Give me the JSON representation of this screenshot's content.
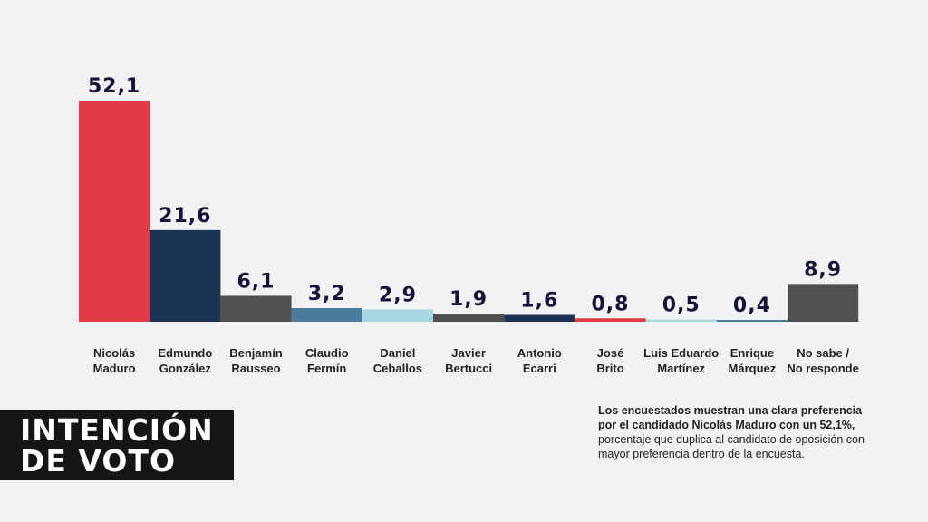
{
  "chart_data": {
    "type": "bar",
    "categories": [
      [
        "Nicolás",
        "Maduro"
      ],
      [
        "Edmundo",
        "González"
      ],
      [
        "Benjamín",
        "Rausseo"
      ],
      [
        "Claudio",
        "Fermín"
      ],
      [
        "Daniel",
        "Ceballos"
      ],
      [
        "Javier",
        "Bertucci"
      ],
      [
        "Antonio",
        "Ecarri"
      ],
      [
        "José",
        "Brito"
      ],
      [
        "Luis Eduardo",
        "Martínez"
      ],
      [
        "Enrique",
        "Márquez"
      ],
      [
        "No sabe /",
        "No responde"
      ]
    ],
    "values": [
      52.1,
      21.6,
      6.1,
      3.2,
      2.9,
      1.9,
      1.6,
      0.8,
      0.5,
      0.4,
      8.9
    ],
    "value_labels": [
      "52,1",
      "21,6",
      "6,1",
      "3,2",
      "2,9",
      "1,9",
      "1,6",
      "0,8",
      "0,5",
      "0,4",
      "8,9"
    ],
    "colors": [
      "#e23a47",
      "#1c3253",
      "#505050",
      "#4a7a9c",
      "#a9d7e0",
      "#505050",
      "#1c3253",
      "#e23a47",
      "#a9d7e0",
      "#4a7a9c",
      "#505050"
    ],
    "ylim": [
      0,
      52.1
    ],
    "grid": false,
    "legend": "none",
    "title": "",
    "xlabel": "",
    "ylabel": ""
  },
  "title_lines": [
    "INTENCIÓN",
    "DE VOTO"
  ],
  "note": {
    "bold": "Los encuestados muestran una clara preferencia por el candidado Nicolás Maduro con un 52,1%,",
    "normal": "porcentaje que duplica al candidato de oposición con mayor preferencia dentro de la encuesta."
  }
}
